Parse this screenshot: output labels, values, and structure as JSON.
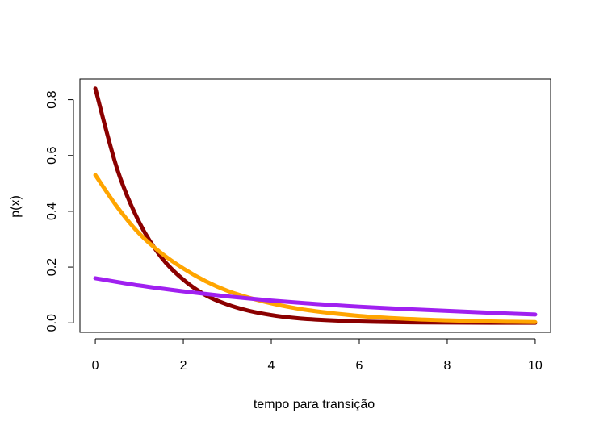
{
  "chart_data": {
    "type": "line",
    "title": "",
    "xlabel": "tempo para transição",
    "ylabel": "p(x)",
    "xlim": [
      -0.35,
      10.35
    ],
    "ylim": [
      -0.034,
      0.874
    ],
    "x_ticks": [
      0,
      2,
      4,
      6,
      8,
      10
    ],
    "x_tick_labels": [
      "0",
      "2",
      "4",
      "6",
      "8",
      "10"
    ],
    "y_ticks": [
      0.0,
      0.2,
      0.4,
      0.6,
      0.8
    ],
    "y_tick_labels": [
      "0.0",
      "0.2",
      "0.4",
      "0.6",
      "0.8"
    ],
    "grid": false,
    "legend": "none",
    "series": [
      {
        "color": "#8B0000",
        "x": [
          0,
          0.5,
          1,
          1.5,
          2,
          2.5,
          3,
          3.5,
          4,
          4.5,
          5,
          6,
          7,
          8,
          9,
          10
        ],
        "y": [
          0.84,
          0.55,
          0.36,
          0.235,
          0.155,
          0.1,
          0.066,
          0.043,
          0.028,
          0.018,
          0.012,
          0.005,
          0.002,
          0.001,
          0.0004,
          0.0002
        ]
      },
      {
        "color": "#FFA500",
        "x": [
          0,
          0.5,
          1,
          1.5,
          2,
          2.5,
          3,
          3.5,
          4,
          4.5,
          5,
          6,
          7,
          8,
          9,
          10
        ],
        "y": [
          0.53,
          0.415,
          0.32,
          0.25,
          0.195,
          0.15,
          0.115,
          0.09,
          0.07,
          0.054,
          0.042,
          0.025,
          0.015,
          0.009,
          0.005,
          0.003
        ]
      },
      {
        "color": "#A020F0",
        "x": [
          0,
          1,
          2,
          3,
          4,
          5,
          6,
          7,
          8,
          9,
          10
        ],
        "y": [
          0.16,
          0.134,
          0.113,
          0.095,
          0.08,
          0.068,
          0.058,
          0.05,
          0.043,
          0.036,
          0.03
        ]
      }
    ]
  }
}
